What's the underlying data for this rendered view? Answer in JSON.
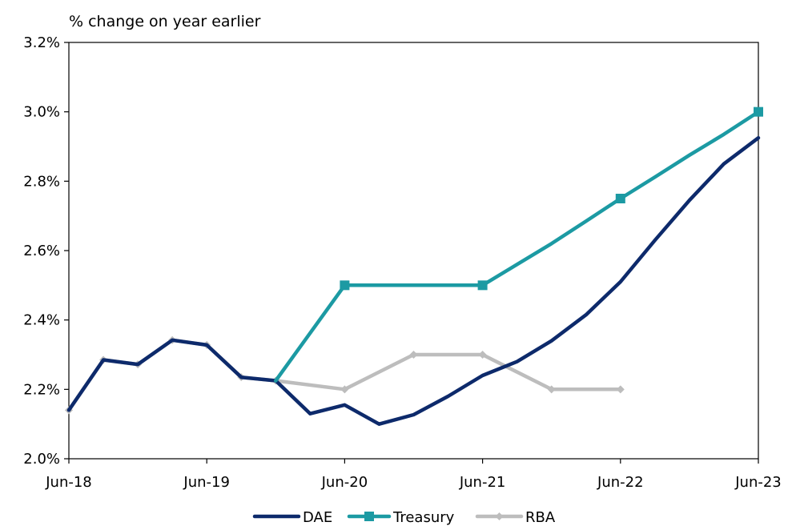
{
  "chart_data": {
    "type": "line",
    "ylabel": "% change on year earlier",
    "ylim": [
      2.0,
      3.2
    ],
    "yticks": [
      {
        "value": 2.0,
        "label": "2.0%"
      },
      {
        "value": 2.2,
        "label": "2.2%"
      },
      {
        "value": 2.4,
        "label": "2.4%"
      },
      {
        "value": 2.6,
        "label": "2.6%"
      },
      {
        "value": 2.8,
        "label": "2.8%"
      },
      {
        "value": 3.0,
        "label": "3.0%"
      },
      {
        "value": 3.2,
        "label": "3.2%"
      }
    ],
    "xlim": [
      0,
      20
    ],
    "xticks": [
      {
        "value": 0,
        "label": "Jun-18"
      },
      {
        "value": 4,
        "label": "Jun-19"
      },
      {
        "value": 8,
        "label": "Jun-20"
      },
      {
        "value": 12,
        "label": "Jun-21"
      },
      {
        "value": 16,
        "label": "Jun-22"
      },
      {
        "value": 20,
        "label": "Jun-23"
      }
    ],
    "x_period": "quarterly, Jun-18 to Jun-23",
    "legend_position": "bottom",
    "grid": false,
    "series": [
      {
        "name": "DAE",
        "color": "#0d2a6b",
        "marker": "none",
        "points": [
          [
            0,
            2.14
          ],
          [
            1,
            2.285
          ],
          [
            2,
            2.272
          ],
          [
            3,
            2.342
          ],
          [
            4,
            2.328
          ],
          [
            5,
            2.235
          ],
          [
            6,
            2.225
          ],
          [
            7,
            2.13
          ],
          [
            8,
            2.155
          ],
          [
            9,
            2.1
          ],
          [
            10,
            2.127
          ],
          [
            11,
            2.18
          ],
          [
            12,
            2.24
          ],
          [
            13,
            2.28
          ],
          [
            14,
            2.34
          ],
          [
            15,
            2.415
          ],
          [
            16,
            2.51
          ],
          [
            17,
            2.63
          ],
          [
            18,
            2.745
          ],
          [
            19,
            2.85
          ],
          [
            20,
            2.925
          ]
        ]
      },
      {
        "name": "Treasury",
        "color": "#1c9aa3",
        "marker": "square",
        "marker_points": [
          [
            8,
            2.5
          ],
          [
            12,
            2.5
          ],
          [
            16,
            2.75
          ],
          [
            20,
            3.0
          ]
        ],
        "points": [
          [
            6,
            2.225
          ],
          [
            8,
            2.5
          ],
          [
            12,
            2.5
          ],
          [
            13,
            2.56
          ],
          [
            14,
            2.62
          ],
          [
            15,
            2.685
          ],
          [
            16,
            2.75
          ],
          [
            17,
            2.812
          ],
          [
            18,
            2.875
          ],
          [
            19,
            2.935
          ],
          [
            20,
            3.0
          ]
        ]
      },
      {
        "name": "RBA",
        "color": "#bdbdbd",
        "marker": "diamond",
        "marker_points": [
          [
            0,
            2.14
          ],
          [
            1,
            2.285
          ],
          [
            2,
            2.272
          ],
          [
            3,
            2.342
          ],
          [
            4,
            2.328
          ],
          [
            5,
            2.235
          ],
          [
            6,
            2.225
          ],
          [
            8,
            2.2
          ],
          [
            10,
            2.3
          ],
          [
            12,
            2.3
          ],
          [
            14,
            2.2
          ],
          [
            16,
            2.2
          ]
        ],
        "points": [
          [
            0,
            2.14
          ],
          [
            1,
            2.285
          ],
          [
            2,
            2.272
          ],
          [
            3,
            2.342
          ],
          [
            4,
            2.328
          ],
          [
            5,
            2.235
          ],
          [
            6,
            2.225
          ],
          [
            8,
            2.2
          ],
          [
            10,
            2.3
          ],
          [
            12,
            2.3
          ],
          [
            14,
            2.2
          ],
          [
            16,
            2.2
          ]
        ]
      }
    ]
  }
}
